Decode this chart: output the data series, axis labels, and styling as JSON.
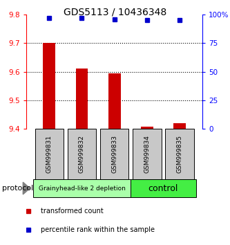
{
  "title": "GDS5113 / 10436348",
  "samples": [
    "GSM999831",
    "GSM999832",
    "GSM999833",
    "GSM999834",
    "GSM999835"
  ],
  "red_values": [
    9.7,
    9.61,
    9.595,
    9.408,
    9.418
  ],
  "blue_values": [
    97,
    97,
    96,
    95.5,
    95.5
  ],
  "ylim_left": [
    9.4,
    9.8
  ],
  "ylim_right": [
    0,
    100
  ],
  "yticks_left": [
    9.4,
    9.5,
    9.6,
    9.7,
    9.8
  ],
  "yticks_right": [
    0,
    25,
    50,
    75,
    100
  ],
  "ytick_labels_right": [
    "0",
    "25",
    "50",
    "75",
    "100%"
  ],
  "grid_lines": [
    9.5,
    9.6,
    9.7
  ],
  "groups": [
    {
      "label": "Grainyhead-like 2 depletion",
      "start": 0,
      "end": 3,
      "color": "#aaffaa",
      "text_size": 6.5
    },
    {
      "label": "control",
      "start": 3,
      "end": 5,
      "color": "#44ee44",
      "text_size": 9
    }
  ],
  "bar_color": "#cc0000",
  "dot_color": "#0000cc",
  "bar_bottom": 9.4,
  "label_box_color": "#c8c8c8",
  "protocol_label": "protocol",
  "legend_red": "transformed count",
  "legend_blue": "percentile rank within the sample",
  "title_fontsize": 10
}
